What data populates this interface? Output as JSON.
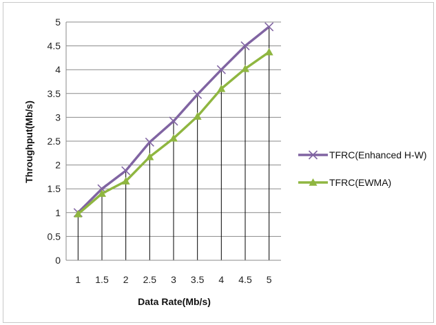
{
  "chart_data": {
    "type": "line",
    "title": "",
    "xlabel": "Data Rate(Mb/s)",
    "ylabel": "Throughput(Mb/s)",
    "categories": [
      "1",
      "1.5",
      "2",
      "2.5",
      "3",
      "3.5",
      "4",
      "4.5",
      "5"
    ],
    "ylim": [
      0,
      5
    ],
    "yticks": [
      "0",
      "0.5",
      "1",
      "1.5",
      "2",
      "2.5",
      "3",
      "3.5",
      "4",
      "4.5",
      "5"
    ],
    "grid": "horizontal",
    "drop_lines": true,
    "legend_position": "right",
    "series": [
      {
        "name": "TFRC(Enhanced H-W)",
        "marker": "x",
        "color": "#8064a2",
        "values": [
          1.0,
          1.5,
          1.88,
          2.48,
          2.92,
          3.48,
          4.0,
          4.5,
          4.9
        ]
      },
      {
        "name": "TFRC(EWMA)",
        "marker": "triangle",
        "color": "#8fb640",
        "values": [
          0.97,
          1.4,
          1.66,
          2.17,
          2.56,
          3.02,
          3.6,
          4.02,
          4.37
        ]
      }
    ]
  }
}
